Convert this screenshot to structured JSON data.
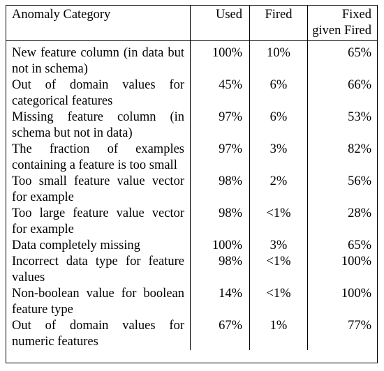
{
  "header": {
    "category": "Anomaly Category",
    "used": "Used",
    "fired": "Fired",
    "fixed_line1": "Fixed",
    "fixed_line2": "given Fired"
  },
  "rows": [
    {
      "category": "New feature column (in data but not in schema)",
      "used": "100%",
      "fired": "10%",
      "fixed": "65%"
    },
    {
      "category": "Out of domain values for categorical features",
      "used": "45%",
      "fired": "6%",
      "fixed": "66%"
    },
    {
      "category": "Missing feature column (in schema but not in data)",
      "used": "97%",
      "fired": "6%",
      "fixed": "53%"
    },
    {
      "category": "The fraction of examples containing a feature is too small",
      "used": "97%",
      "fired": "3%",
      "fixed": "82%"
    },
    {
      "category": "Too small feature value vector for example",
      "used": "98%",
      "fired": "2%",
      "fixed": "56%"
    },
    {
      "category": "Too large feature value vector for example",
      "used": "98%",
      "fired": "<1%",
      "fixed": "28%"
    },
    {
      "category": "Data completely missing",
      "used": "100%",
      "fired": "3%",
      "fixed": "65%"
    },
    {
      "category": "Incorrect data type for feature values",
      "used": "98%",
      "fired": "<1%",
      "fixed": "100%"
    },
    {
      "category": "Non-boolean value for boolean feature type",
      "used": "14%",
      "fired": "<1%",
      "fixed": "100%"
    },
    {
      "category": "Out of domain values for numeric features",
      "used": "67%",
      "fired": "1%",
      "fixed": "77%"
    }
  ]
}
